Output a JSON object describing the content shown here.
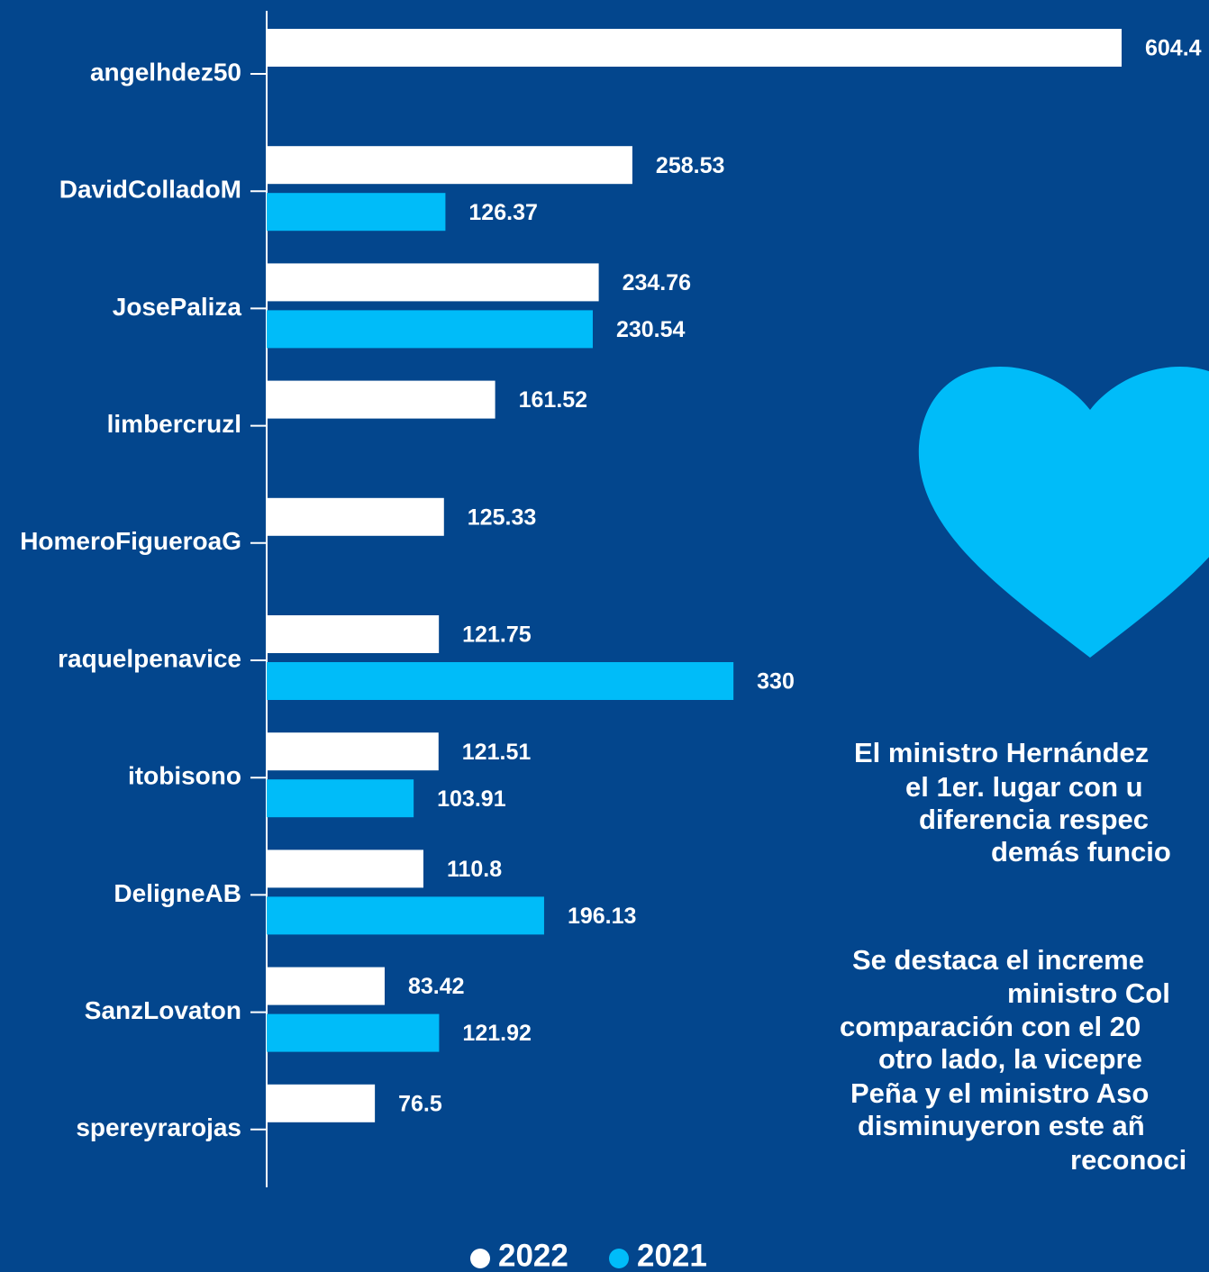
{
  "chart_data": {
    "type": "bar",
    "orientation": "horizontal",
    "categories": [
      "angelhdez50",
      "DavidColladoM",
      "JosePaliza",
      "limbercruzl",
      "HomeroFigueroaG",
      "raquelpenavice",
      "itobisono",
      "DeligneAB",
      "SanzLovaton",
      "spereyrarojas"
    ],
    "series": [
      {
        "name": "2022",
        "color": "#ffffff",
        "values": [
          604.4,
          258.53,
          234.76,
          161.52,
          125.33,
          121.75,
          121.51,
          110.8,
          83.42,
          76.5
        ]
      },
      {
        "name": "2021",
        "color": "#00bcf9",
        "values": [
          null,
          126.37,
          230.54,
          null,
          null,
          330,
          103.91,
          196.13,
          121.92,
          null
        ]
      }
    ],
    "xlim": [
      0,
      604.4
    ],
    "legend": "bottom",
    "annotation": [
      [
        "El ministro Hernández",
        "el 1er. lugar con u",
        "diferencia respec",
        "demás funcio"
      ],
      [
        "Se destaca el increme",
        "ministro Col",
        "comparación con el 20",
        "otro lado, la vicepre",
        "Peña y el ministro Aso",
        "disminuyeron este añ",
        "reconoci"
      ]
    ]
  }
}
